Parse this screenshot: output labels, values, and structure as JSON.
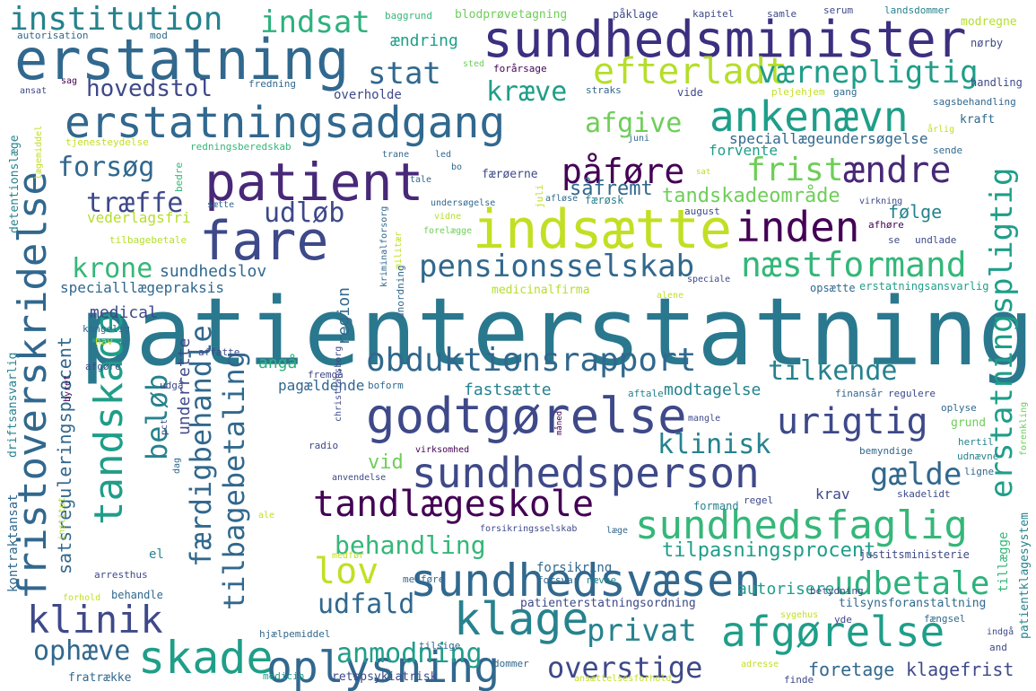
{
  "palette": {
    "deep_purple": "#440154",
    "purple": "#482878",
    "indigo": "#3e4989",
    "blue": "#31688e",
    "teal": "#26828e",
    "green_teal": "#1f9e89",
    "green": "#35b779",
    "light_green": "#6ece58",
    "lime": "#b5de2b",
    "yellow": "#fde725",
    "background": "#ffffff"
  },
  "words": [
    {
      "text": "patienterstatning",
      "color": "#2a788e"
    },
    {
      "text": "erstatning",
      "color": "#31688e"
    },
    {
      "text": "sundhedsminister",
      "color": "#3b2f80"
    },
    {
      "text": "erstatningsadgang",
      "color": "#31688e"
    },
    {
      "text": "patient",
      "color": "#482878"
    },
    {
      "text": "fare",
      "color": "#3e4989"
    },
    {
      "text": "indsætte",
      "color": "#c2df23"
    },
    {
      "text": "godtgørelse",
      "color": "#3e4989"
    },
    {
      "text": "sundhedsperson",
      "color": "#3e4989"
    },
    {
      "text": "sundhedsvæsen",
      "color": "#31688e"
    },
    {
      "text": "sundhedsfaglig",
      "color": "#35b779"
    },
    {
      "text": "afgørelse",
      "color": "#1f9e89"
    },
    {
      "text": "klage",
      "color": "#26828e"
    },
    {
      "text": "skade",
      "color": "#1f9e89"
    },
    {
      "text": "oplysning",
      "color": "#31688e"
    },
    {
      "text": "tandskade",
      "color": "#1f9e89"
    },
    {
      "text": "fristoverskridelse",
      "color": "#31688e"
    },
    {
      "text": "ankenævn",
      "color": "#1f9e89"
    },
    {
      "text": "inden",
      "color": "#440154"
    },
    {
      "text": "efterladt",
      "color": "#b5de2b"
    },
    {
      "text": "institution",
      "color": "#26828e"
    },
    {
      "text": "obduktionsrapport",
      "color": "#31688e"
    },
    {
      "text": "tandlægeskole",
      "color": "#440154"
    },
    {
      "text": "pensionsselskab",
      "color": "#31688e"
    },
    {
      "text": "næstformand",
      "color": "#35b779"
    },
    {
      "text": "erstatningspligtig",
      "color": "#1f9e89"
    },
    {
      "text": "urigtig",
      "color": "#3e4989"
    },
    {
      "text": "klinik",
      "color": "#3e4989"
    },
    {
      "text": "udbetale",
      "color": "#2db27d"
    },
    {
      "text": "påføre",
      "color": "#440154"
    },
    {
      "text": "ændre",
      "color": "#482878"
    },
    {
      "text": "frist",
      "color": "#6ece58"
    },
    {
      "text": "forsøg",
      "color": "#31688e"
    },
    {
      "text": "træffe",
      "color": "#3e4989"
    },
    {
      "text": "krone",
      "color": "#35b779"
    },
    {
      "text": "lov",
      "color": "#c2df23"
    },
    {
      "text": "stat",
      "color": "#31688e"
    },
    {
      "text": "indsat",
      "color": "#2db27d"
    },
    {
      "text": "hovedstol",
      "color": "#3e4989"
    },
    {
      "text": "kræve",
      "color": "#1f9e89"
    },
    {
      "text": "værnepligtig",
      "color": "#1f9e89"
    },
    {
      "text": "afgive",
      "color": "#6ece58"
    },
    {
      "text": "udløb",
      "color": "#3e4989"
    },
    {
      "text": "tilkende",
      "color": "#26828e"
    },
    {
      "text": "klinisk",
      "color": "#26828e"
    },
    {
      "text": "gælde",
      "color": "#31688e"
    },
    {
      "text": "behandling",
      "color": "#35b779"
    },
    {
      "text": "privat",
      "color": "#26828e"
    },
    {
      "text": "anmodning",
      "color": "#1f9e89"
    },
    {
      "text": "overstige",
      "color": "#3e4989"
    },
    {
      "text": "ophæve",
      "color": "#31688e"
    },
    {
      "text": "udfald",
      "color": "#31688e"
    },
    {
      "text": "beløb",
      "color": "#26828e"
    },
    {
      "text": "færdigbehandle",
      "color": "#31688e"
    },
    {
      "text": "tilbagebetaling",
      "color": "#31688e"
    },
    {
      "text": "sundhedslov",
      "color": "#31688e"
    },
    {
      "text": "specialllægepraksis",
      "color": "#31688e"
    },
    {
      "text": "medical",
      "color": "#3e4989"
    },
    {
      "text": "fastsætte",
      "color": "#26828e"
    },
    {
      "text": "modtagelse",
      "color": "#26828e"
    },
    {
      "text": "pagældende",
      "color": "#31688e"
    },
    {
      "text": "vid",
      "color": "#6ece58"
    },
    {
      "text": "tilpasningsprocent",
      "color": "#1f9e89"
    },
    {
      "text": "tandskadeområde",
      "color": "#6ece58"
    },
    {
      "text": "såfremt",
      "color": "#31688e"
    },
    {
      "text": "følge",
      "color": "#26828e"
    },
    {
      "text": "speciallægeundersøgelse",
      "color": "#31688e"
    },
    {
      "text": "forvente",
      "color": "#1f9e89"
    },
    {
      "text": "foretage",
      "color": "#31688e"
    },
    {
      "text": "klagefrist",
      "color": "#3e4989"
    },
    {
      "text": "autorisere",
      "color": "#1f9e89"
    },
    {
      "text": "patienterstatningsordning",
      "color": "#3e4989"
    },
    {
      "text": "forsikring",
      "color": "#31688e"
    },
    {
      "text": "satsreguleringsprocent",
      "color": "#31688e"
    },
    {
      "text": "vederlagsfri",
      "color": "#b5de2b"
    },
    {
      "text": "region",
      "color": "#31688e"
    },
    {
      "text": "angå",
      "color": "#2db27d"
    },
    {
      "text": "underrette",
      "color": "#3e4989"
    },
    {
      "text": "krav",
      "color": "#3e4989"
    },
    {
      "text": "ændring",
      "color": "#1f9e89"
    },
    {
      "text": "tilsynsforanstaltning",
      "color": "#31688e"
    },
    {
      "text": "patientklagesystem",
      "color": "#26828e"
    },
    {
      "text": "kontraktansat",
      "color": "#31688e"
    },
    {
      "text": "driftsansvarlig",
      "color": "#26828e"
    },
    {
      "text": "detentionslæge",
      "color": "#26828e"
    },
    {
      "text": "erstatningsansvarlig",
      "color": "#1f9e89"
    },
    {
      "text": "opsætte",
      "color": "#31688e"
    },
    {
      "text": "medicinalfirma",
      "color": "#b5de2b"
    },
    {
      "text": "retspsykiatrisk",
      "color": "#3e4989"
    },
    {
      "text": "fratrække",
      "color": "#31688e"
    },
    {
      "text": "tillægge",
      "color": "#35b779"
    },
    {
      "text": "kraft",
      "color": "#31688e"
    },
    {
      "text": "mod",
      "color": "#31688e"
    },
    {
      "text": "autorisation",
      "color": "#31688e"
    },
    {
      "text": "baggrund",
      "color": "#35b779"
    },
    {
      "text": "blodprøvetagning",
      "color": "#6ece58"
    },
    {
      "text": "påklage",
      "color": "#3e4989"
    },
    {
      "text": "kapitel",
      "color": "#3e4989"
    },
    {
      "text": "samle",
      "color": "#3e4989"
    },
    {
      "text": "serum",
      "color": "#3e4989"
    },
    {
      "text": "landsdommer",
      "color": "#26828e"
    },
    {
      "text": "modregne",
      "color": "#b5de2b"
    },
    {
      "text": "nørby",
      "color": "#3e4989"
    },
    {
      "text": "vide",
      "color": "#3e4989"
    },
    {
      "text": "straks",
      "color": "#31688e"
    },
    {
      "text": "fredning",
      "color": "#31688e"
    },
    {
      "text": "forårsage",
      "color": "#440154"
    },
    {
      "text": "sted",
      "color": "#6ece58"
    },
    {
      "text": "sag",
      "color": "#440154"
    },
    {
      "text": "ansat",
      "color": "#3e4989"
    },
    {
      "text": "overholde",
      "color": "#3e4989"
    },
    {
      "text": "handling",
      "color": "#3e4989"
    },
    {
      "text": "plejehjem",
      "color": "#c2df23"
    },
    {
      "text": "gang",
      "color": "#31688e"
    },
    {
      "text": "sagsbehandling",
      "color": "#31688e"
    },
    {
      "text": "årlig",
      "color": "#c2df23"
    },
    {
      "text": "tjenesteydelse",
      "color": "#c2df23"
    },
    {
      "text": "redningsberedskab",
      "color": "#35b779"
    },
    {
      "text": "lægemiddel",
      "color": "#c2df23"
    },
    {
      "text": "juni",
      "color": "#31688e"
    },
    {
      "text": "sende",
      "color": "#31688e"
    },
    {
      "text": "trane",
      "color": "#31688e"
    },
    {
      "text": "led",
      "color": "#31688e"
    },
    {
      "text": "bo",
      "color": "#31688e"
    },
    {
      "text": "sat",
      "color": "#b5de2b"
    },
    {
      "text": "færøerne",
      "color": "#3e4989"
    },
    {
      "text": "bedre",
      "color": "#35b779"
    },
    {
      "text": "tale",
      "color": "#31688e"
    },
    {
      "text": "juli",
      "color": "#c2df23"
    },
    {
      "text": "afløse",
      "color": "#31688e"
    },
    {
      "text": "færøsk",
      "color": "#26828e"
    },
    {
      "text": "virkning",
      "color": "#3e4989"
    },
    {
      "text": "sætte",
      "color": "#31688e"
    },
    {
      "text": "undersøgelse",
      "color": "#31688e"
    },
    {
      "text": "vidne",
      "color": "#b5de2b"
    },
    {
      "text": "august",
      "color": "#3e4989"
    },
    {
      "text": "afhøre",
      "color": "#440154"
    },
    {
      "text": "forelægge",
      "color": "#6ece58"
    },
    {
      "text": "tilbagebetale",
      "color": "#b5de2b"
    },
    {
      "text": "undlade",
      "color": "#3e4989"
    },
    {
      "text": "se",
      "color": "#3e4989"
    },
    {
      "text": "kriminalforsorg",
      "color": "#31688e"
    },
    {
      "text": "militær",
      "color": "#c2df23"
    },
    {
      "text": "anordning",
      "color": "#31688e"
    },
    {
      "text": "speciale",
      "color": "#3e4989"
    },
    {
      "text": "alene",
      "color": "#c2df23"
    },
    {
      "text": "byret",
      "color": "#440154"
    },
    {
      "text": "kongelig",
      "color": "#31688e"
    },
    {
      "text": "hav",
      "color": "#c2df23"
    },
    {
      "text": "affatte",
      "color": "#3e4989"
    },
    {
      "text": "fremgå",
      "color": "#3e4989"
    },
    {
      "text": "afgøre",
      "color": "#3e4989"
    },
    {
      "text": "udgå",
      "color": "#3e4989"
    },
    {
      "text": "boform",
      "color": "#31688e"
    },
    {
      "text": "christiansborg",
      "color": "#3e4989"
    },
    {
      "text": "aftale",
      "color": "#26828e"
    },
    {
      "text": "finansår",
      "color": "#31688e"
    },
    {
      "text": "regulere",
      "color": "#3e4989"
    },
    {
      "text": "oplyse",
      "color": "#31688e"
    },
    {
      "text": "grund",
      "color": "#6ece58"
    },
    {
      "text": "hertil",
      "color": "#26828e"
    },
    {
      "text": "udnævne",
      "color": "#26828e"
    },
    {
      "text": "forenkling",
      "color": "#6ece58"
    },
    {
      "text": "mangle",
      "color": "#3e4989"
    },
    {
      "text": "måned",
      "color": "#440154"
    },
    {
      "text": "pct",
      "color": "#3e4989"
    },
    {
      "text": "radio",
      "color": "#3e4989"
    },
    {
      "text": "virksomhed",
      "color": "#440154"
    },
    {
      "text": "bemyndige",
      "color": "#31688e"
    },
    {
      "text": "ligne",
      "color": "#31688e"
    },
    {
      "text": "dag",
      "color": "#31688e"
    },
    {
      "text": "anvendelse",
      "color": "#3e4989"
    },
    {
      "text": "skadelidt",
      "color": "#3e4989"
    },
    {
      "text": "formand",
      "color": "#26828e"
    },
    {
      "text": "regel",
      "color": "#3e4989"
    },
    {
      "text": "institut",
      "color": "#b5de2b"
    },
    {
      "text": "ale",
      "color": "#c2df23"
    },
    {
      "text": "forsikringsselskab",
      "color": "#3e4989"
    },
    {
      "text": "læge",
      "color": "#31688e"
    },
    {
      "text": "el",
      "color": "#26828e"
    },
    {
      "text": "medfør",
      "color": "#c2df23"
    },
    {
      "text": "medføre",
      "color": "#31688e"
    },
    {
      "text": "forsvar",
      "color": "#31688e"
    },
    {
      "text": "nævne",
      "color": "#26828e"
    },
    {
      "text": "justitsministerie",
      "color": "#3e4989"
    },
    {
      "text": "betydning",
      "color": "#3e4989"
    },
    {
      "text": "arresthus",
      "color": "#3e4989"
    },
    {
      "text": "behandle",
      "color": "#31688e"
    },
    {
      "text": "forhold",
      "color": "#c2df23"
    },
    {
      "text": "sygehus",
      "color": "#c2df23"
    },
    {
      "text": "yde",
      "color": "#3e4989"
    },
    {
      "text": "fængsel",
      "color": "#31688e"
    },
    {
      "text": "indgå",
      "color": "#3e4989"
    },
    {
      "text": "and",
      "color": "#3e4989"
    },
    {
      "text": "hjælpemiddel",
      "color": "#31688e"
    },
    {
      "text": "tilsige",
      "color": "#31688e"
    },
    {
      "text": "dommer",
      "color": "#31688e"
    },
    {
      "text": "adresse",
      "color": "#c2df23"
    },
    {
      "text": "ansættelsesforhold",
      "color": "#c2df23"
    },
    {
      "text": "finde",
      "color": "#3e4989"
    },
    {
      "text": "medicin",
      "color": "#1f9e89"
    }
  ]
}
